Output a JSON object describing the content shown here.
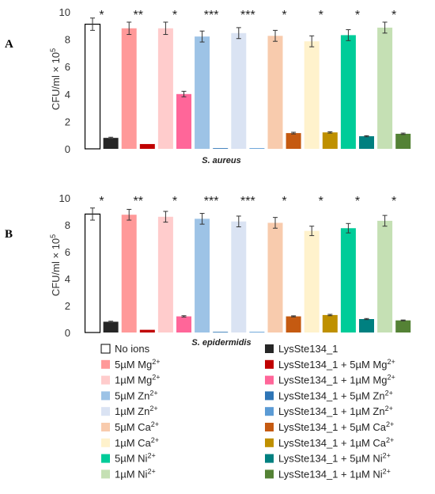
{
  "figure": {
    "panels": [
      {
        "letter": "A",
        "xlabel": "S. aureus",
        "ylabel": "CFU/ml × 10",
        "ylabel_sup": "5"
      },
      {
        "letter": "B",
        "xlabel": "S. epidermidis",
        "ylabel": "CFU/ml × 10",
        "ylabel_sup": "5"
      }
    ],
    "legend": [
      {
        "label": "No ions",
        "sup": "",
        "color": "#ffffff",
        "outline": true
      },
      {
        "label": "LysSte134_1",
        "sup": "",
        "color": "#262626"
      },
      {
        "label": "5µM Mg",
        "sup": "2+",
        "color": "#ff9999"
      },
      {
        "label": "LysSte134_1 + 5µM Mg",
        "sup": "2+",
        "color": "#c00000"
      },
      {
        "label": "1µM Mg",
        "sup": "2+",
        "color": "#ffcccc"
      },
      {
        "label": "LysSte134_1 + 1µM Mg",
        "sup": "2+",
        "color": "#ff6699"
      },
      {
        "label": "5µM Zn",
        "sup": "2+",
        "color": "#9dc3e6"
      },
      {
        "label": "LysSte134_1 + 5µM Zn",
        "sup": "2+",
        "color": "#2e75b6"
      },
      {
        "label": "1µM Zn",
        "sup": "2+",
        "color": "#dae3f3"
      },
      {
        "label": "LysSte134_1 + 1µM Zn",
        "sup": "2+",
        "color": "#5b9bd5"
      },
      {
        "label": "5µM Ca",
        "sup": "2+",
        "color": "#f8cbad"
      },
      {
        "label": "LysSte134_1 + 5µM Ca",
        "sup": "2+",
        "color": "#c55a11"
      },
      {
        "label": "1µM Ca",
        "sup": "2+",
        "color": "#fff2cc"
      },
      {
        "label": "LysSte134_1 + 1µM Ca",
        "sup": "2+",
        "color": "#bf9000"
      },
      {
        "label": "5µM Ni",
        "sup": "2+",
        "color": "#00cc99"
      },
      {
        "label": "LysSte134_1 + 5µM Ni",
        "sup": "2+",
        "color": "#008080"
      },
      {
        "label": "1µM Ni",
        "sup": "2+",
        "color": "#c5e0b4"
      },
      {
        "label": "LysSte134_1 + 1µM Ni",
        "sup": "2+",
        "color": "#548235"
      }
    ]
  },
  "chart_data": [
    {
      "type": "bar",
      "title": "",
      "xlabel": "S. aureus",
      "ylabel": "CFU/ml × 10^5",
      "ylim": [
        0,
        10
      ],
      "yticks": [
        0,
        2,
        4,
        6,
        8,
        10
      ],
      "grid": false,
      "legend_placement": "bottom",
      "values": [
        9.1,
        0.8,
        8.8,
        0.35,
        8.8,
        4.0,
        8.2,
        0.05,
        8.45,
        0.05,
        8.25,
        1.15,
        7.85,
        1.2,
        8.3,
        0.92,
        8.85,
        1.1
      ],
      "errors": [
        0.45,
        0.05,
        0.45,
        0.0,
        0.45,
        0.2,
        0.4,
        0.0,
        0.4,
        0.0,
        0.4,
        0.06,
        0.4,
        0.05,
        0.4,
        0.04,
        0.4,
        0.05
      ],
      "significance": [
        "*",
        "**",
        "*",
        "***",
        "***",
        "*",
        "*",
        "*",
        "*"
      ]
    },
    {
      "type": "bar",
      "title": "",
      "xlabel": "S. epidermidis",
      "ylabel": "CFU/ml × 10^5",
      "ylim": [
        0,
        10
      ],
      "yticks": [
        0,
        2,
        4,
        6,
        8,
        10
      ],
      "grid": false,
      "legend_placement": "bottom",
      "values": [
        8.8,
        0.8,
        8.75,
        0.2,
        8.6,
        1.2,
        8.45,
        0.05,
        8.25,
        0.05,
        8.15,
        1.2,
        7.55,
        1.3,
        7.75,
        1.0,
        8.3,
        0.9
      ],
      "errors": [
        0.45,
        0.04,
        0.4,
        0.0,
        0.4,
        0.05,
        0.4,
        0.0,
        0.4,
        0.0,
        0.4,
        0.04,
        0.35,
        0.05,
        0.35,
        0.04,
        0.4,
        0.03
      ],
      "significance": [
        "*",
        "**",
        "*",
        "***",
        "***",
        "*",
        "*",
        "*",
        "*"
      ]
    }
  ]
}
